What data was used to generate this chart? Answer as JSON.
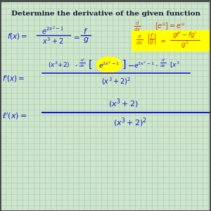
{
  "background_color": "#cde5cd",
  "grid_color": "#b0ccb0",
  "title": "Determine the derivative of the given function",
  "title_color": "#1a1a3a",
  "border_color": "#444444",
  "blue": "#1a1acc",
  "orange_red": "#cc4400",
  "yellow_highlight": "#ffff00",
  "figsize": [
    3.0,
    3.0
  ],
  "dpi": 100
}
